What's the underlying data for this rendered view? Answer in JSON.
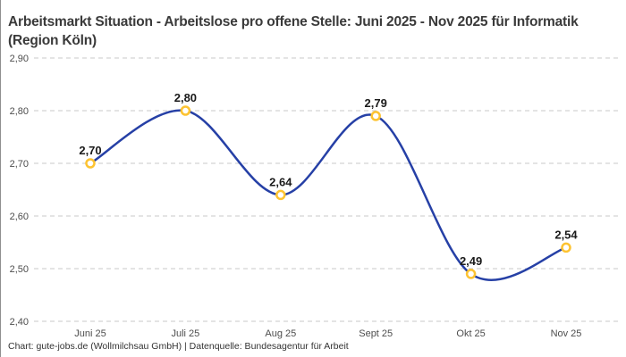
{
  "page": {
    "title": "Arbeitsmarkt Situation - Arbeitslose pro offene Stelle: Juni 2025 - Nov 2025 für Informatik (Region Köln)",
    "footer": "Chart: gute-jobs.de (Wollmilchsau GmbH) | Datenquelle: Bundesagentur für Arbeit"
  },
  "chart_data": {
    "type": "line",
    "title": "Arbeitsmarkt Situation - Arbeitslose pro offene Stelle: Juni 2025 - Nov 2025 für Informatik (Region Köln)",
    "categories": [
      "Juni 25",
      "Juli 25",
      "Aug 25",
      "Sept 25",
      "Okt 25",
      "Nov 25"
    ],
    "values": [
      2.7,
      2.8,
      2.64,
      2.79,
      2.49,
      2.54
    ],
    "point_labels": [
      "2,70",
      "2,80",
      "2,64",
      "2,79",
      "2,49",
      "2,54"
    ],
    "y_ticks": [
      {
        "label": "2,90",
        "value": 2.9
      },
      {
        "label": "2,80",
        "value": 2.8
      },
      {
        "label": "2,70",
        "value": 2.7
      },
      {
        "label": "2,60",
        "value": 2.6
      },
      {
        "label": "2,50",
        "value": 2.5
      },
      {
        "label": "2,40",
        "value": 2.4
      }
    ],
    "ylim": [
      2.4,
      2.9
    ],
    "xlabel": "",
    "ylabel": "",
    "legend": "none",
    "grid": "horizontal-dashed",
    "curve": "smooth-spline",
    "colors": {
      "line": "#2640a6",
      "marker_ring": "#fdc331",
      "marker_fill": "#ffffff",
      "grid": "#c8c8c8",
      "tick_text": "#4d4d4d",
      "value_label_text": "#1a1a1a",
      "title_text": "#3a3a3a",
      "footer_text": "#333333"
    }
  }
}
